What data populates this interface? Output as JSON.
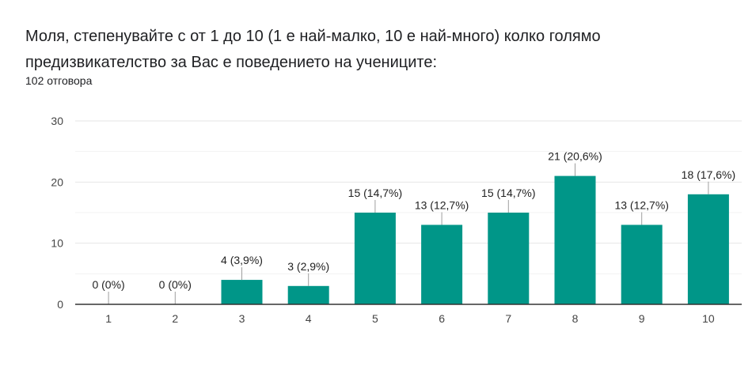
{
  "question": {
    "title": "Моля, степенувайте с от 1 до 10 (1 е най-малко, 10 е най-много) колко голямо предизвикателство за Вас е поведението на учениците:",
    "responses": "102 отговора"
  },
  "chart_data": {
    "type": "bar",
    "title": "",
    "xlabel": "",
    "ylabel": "",
    "categories": [
      "1",
      "2",
      "3",
      "4",
      "5",
      "6",
      "7",
      "8",
      "9",
      "10"
    ],
    "values": [
      0,
      0,
      4,
      3,
      15,
      13,
      15,
      21,
      13,
      18
    ],
    "data_labels": [
      "0 (0%)",
      "0 (0%)",
      "4 (3,9%)",
      "3 (2,9%)",
      "15 (14,7%)",
      "13 (12,7%)",
      "15 (14,7%)",
      "21 (20,6%)",
      "13 (12,7%)",
      "18 (17,6%)"
    ],
    "ylim": [
      0,
      30
    ],
    "yticks": [
      "0",
      "10",
      "20",
      "30"
    ],
    "grid": true,
    "bar_color": "#009688",
    "grid_color": "#e6e6e6"
  }
}
